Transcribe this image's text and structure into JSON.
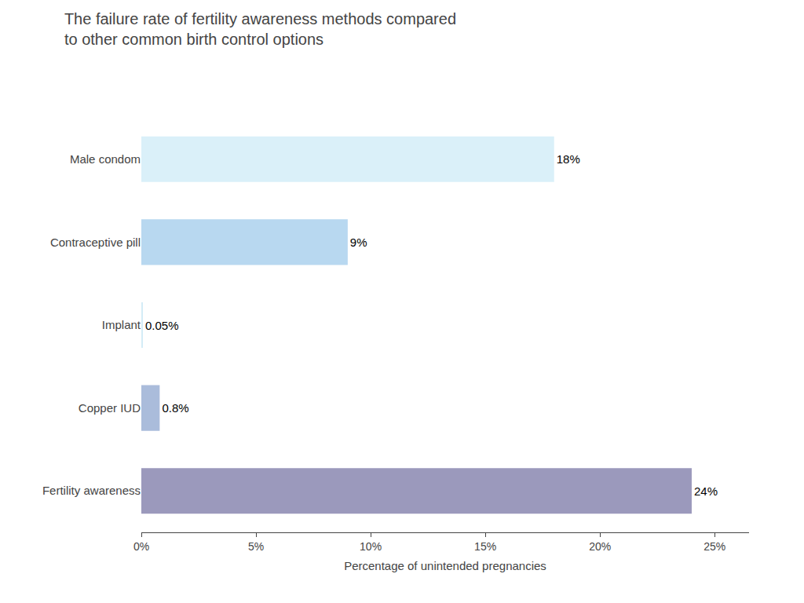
{
  "chart_data": {
    "type": "bar",
    "orientation": "horizontal",
    "title": "The failure rate of fertility awareness methods compared\nto other common birth control options",
    "categories": [
      "Fertility awareness",
      "Copper IUD",
      "Implant",
      "Contraceptive pill",
      "Male condom"
    ],
    "values": [
      24,
      0.8,
      0.05,
      9,
      18
    ],
    "value_labels": [
      "24%",
      "0.8%",
      "0.05%",
      "9%",
      "18%"
    ],
    "data_labels": true,
    "colors": [
      "#9b99bc",
      "#aabcdb",
      "#d4ecf7",
      "#b8d8f0",
      "#daf0f9"
    ],
    "xlabel": "Percentage of unintended pregnancies",
    "xlim": [
      0,
      26.5
    ],
    "xticks": [
      {
        "value": 0,
        "label": "0%"
      },
      {
        "value": 5,
        "label": "5%"
      },
      {
        "value": 10,
        "label": "10%"
      },
      {
        "value": 15,
        "label": "15%"
      },
      {
        "value": 20,
        "label": "20%"
      },
      {
        "value": 25,
        "label": "25%"
      }
    ],
    "grid": false
  }
}
